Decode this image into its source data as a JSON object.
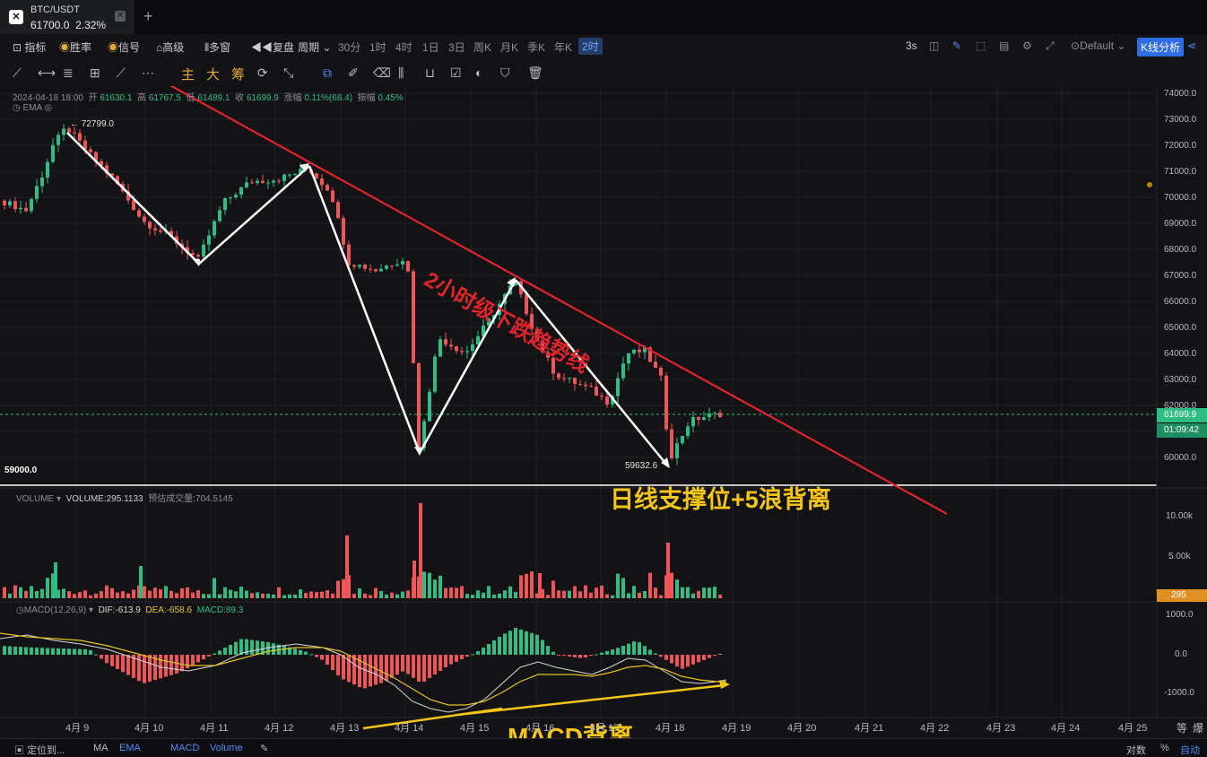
{
  "tab": {
    "symbol": "BTC/USDT",
    "price": "61700.0",
    "change": "2.32%",
    "add": "+"
  },
  "toolbar1": {
    "items": [
      "指标",
      "胜率",
      "信号",
      "高级",
      "多窗",
      "复盘",
      "周期"
    ],
    "periods": [
      "30分",
      "1时",
      "4时",
      "1日",
      "3日",
      "周K",
      "月K",
      "季K",
      "年K"
    ],
    "active_period": "2时",
    "right": {
      "refresh": "3s",
      "layout": "Default",
      "kline_analysis": "K线分析"
    }
  },
  "toolbar2": {
    "tools": [
      "主",
      "大",
      "筹"
    ]
  },
  "info": {
    "datetime": "2024-04-18 18:00",
    "open_label": "开",
    "open": "61630.1",
    "high_label": "高",
    "high": "61767.5",
    "low_label": "低",
    "low": "61489.1",
    "close_label": "收",
    "close": "61699.9",
    "chg_label": "涨幅",
    "chg": "0.11%(68.4)",
    "amp_label": "振幅",
    "amp": "0.45%",
    "ema_label": "EMA"
  },
  "price_axis": [
    "74000.0",
    "73000.0",
    "72000.0",
    "71000.0",
    "70000.0",
    "69000.0",
    "68000.0",
    "67000.0",
    "66000.0",
    "65000.0",
    "64000.0",
    "63000.0",
    "62000.0",
    "60000.0"
  ],
  "price_tags": {
    "current": "61699.9",
    "countdown": "01:09:42",
    "high_mark": "← 72799.0",
    "low_mark": "59632.6",
    "support_label": "59000.0"
  },
  "annotations": {
    "trendline": "2小时级下跌趋势线",
    "support": "日线支撑位+5浪背离",
    "macd_div": "MACD背离"
  },
  "volume": {
    "label": "VOLUME",
    "value": "VOLUME:295.1133",
    "est": "预估成交量:704.5145",
    "axis": [
      "10.00k",
      "5.00k"
    ],
    "current": "295"
  },
  "macd": {
    "label": "MACD(12,26,9)",
    "dif": "DIF:-613.9",
    "dea": "DEA:-658.6",
    "macd": "MACD:89.3",
    "axis": [
      "1000.0",
      "0.0",
      "-1000.0"
    ]
  },
  "x_axis": [
    "4月 9",
    "4月 10",
    "4月 11",
    "4月 12",
    "4月 13",
    "4月 14",
    "4月 15",
    "4月 16",
    "4月 17",
    "4月 18",
    "4月 19",
    "4月 20",
    "4月 21",
    "4月 22",
    "4月 23",
    "4月 24",
    "4月 25"
  ],
  "axis_corner": [
    "等",
    "爆"
  ],
  "bottombar": {
    "locate": "定位到...",
    "items": [
      "MA",
      "EMA",
      "MACD",
      "Volume"
    ],
    "right": [
      "对数",
      "%",
      "自动"
    ]
  },
  "colors": {
    "up": "#2ebd85",
    "down": "#f0555a",
    "trend": "#e0242b",
    "gold": "#f5c518",
    "accent": "#2f6de6"
  },
  "chart_data": {
    "type": "candlestick",
    "interval": "2h",
    "y_range": [
      59000,
      74000
    ],
    "key_points": [
      {
        "label": "high",
        "x": "4月 9",
        "y": 72799.0
      },
      {
        "x": "4月 11",
        "y": 67400
      },
      {
        "x": "4月 12",
        "y": 71200
      },
      {
        "x": "4月 14",
        "y": 60100
      },
      {
        "x": "4月 15",
        "y": 66900
      },
      {
        "label": "low",
        "x": "4月 18",
        "y": 59632.6
      },
      {
        "label": "last",
        "x": "4月 18",
        "y": 61699.9
      }
    ],
    "support_level": 59000.0
  }
}
